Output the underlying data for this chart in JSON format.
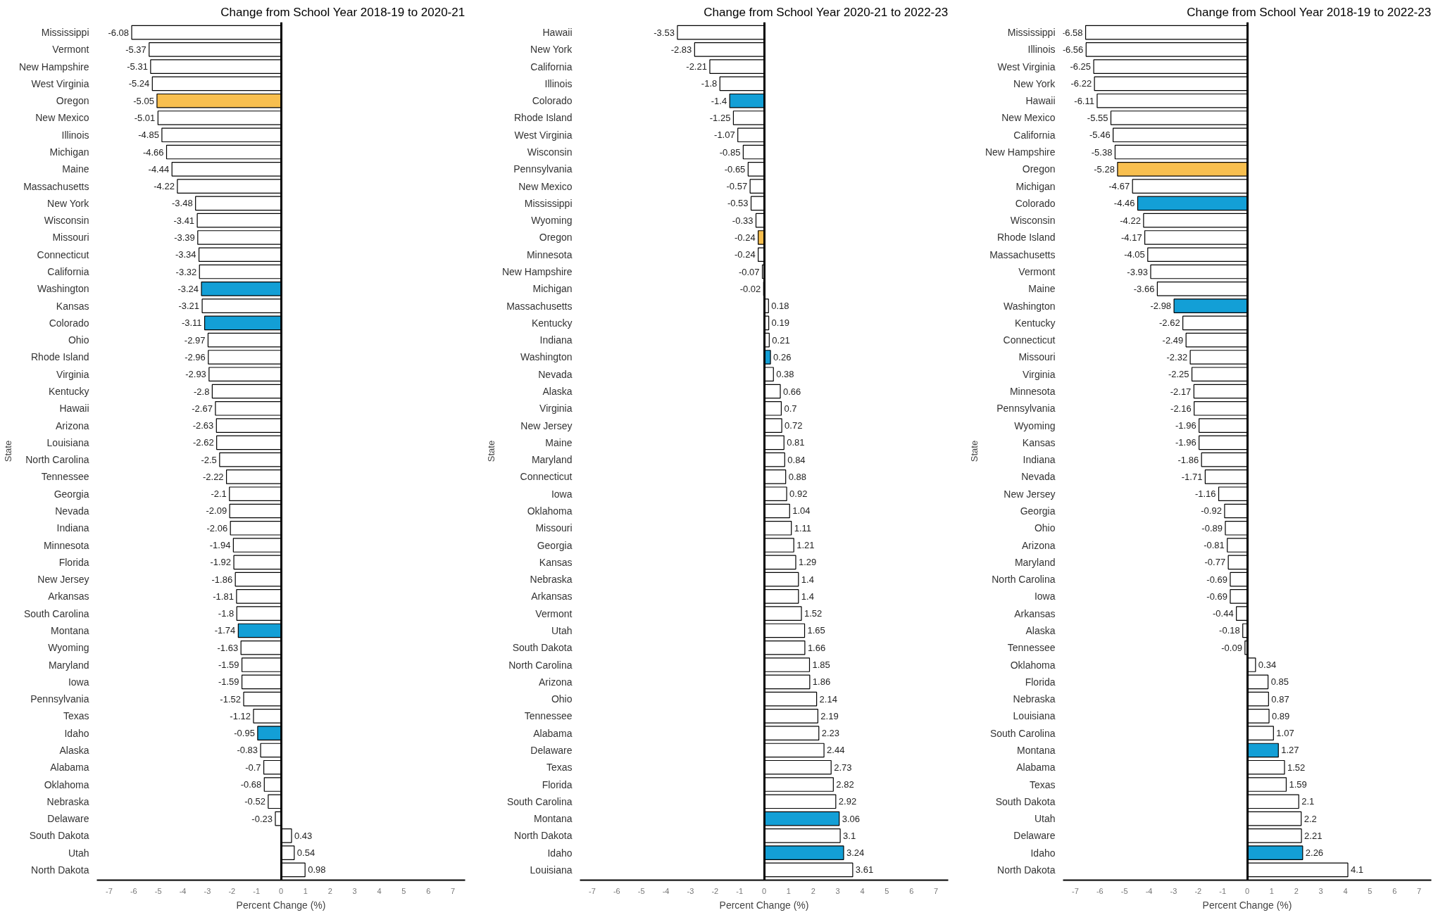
{
  "chart_data": [
    {
      "type": "bar",
      "orientation": "horizontal",
      "title": "Change from School Year 2018-19 to 2020-21",
      "xlabel": "Percent Change (%)",
      "ylabel": "State",
      "xlim": [
        -7.5,
        7.5
      ],
      "xticks": [
        -7,
        -6,
        -5,
        -4,
        -3,
        -2,
        -1,
        0,
        1,
        2,
        3,
        4,
        5,
        6,
        7
      ],
      "data_labels": true,
      "categories": [
        "Mississippi",
        "Vermont",
        "New Hampshire",
        "West Virginia",
        "Oregon",
        "New Mexico",
        "Illinois",
        "Michigan",
        "Maine",
        "Massachusetts",
        "New York",
        "Wisconsin",
        "Missouri",
        "Connecticut",
        "California",
        "Washington",
        "Kansas",
        "Colorado",
        "Ohio",
        "Rhode Island",
        "Virginia",
        "Kentucky",
        "Hawaii",
        "Arizona",
        "Louisiana",
        "North Carolina",
        "Tennessee",
        "Georgia",
        "Nevada",
        "Indiana",
        "Minnesota",
        "Florida",
        "New Jersey",
        "Arkansas",
        "South Carolina",
        "Montana",
        "Wyoming",
        "Maryland",
        "Iowa",
        "Pennsylvania",
        "Texas",
        "Idaho",
        "Alaska",
        "Alabama",
        "Oklahoma",
        "Nebraska",
        "Delaware",
        "South Dakota",
        "Utah",
        "North Dakota"
      ],
      "values": [
        -6.08,
        -5.37,
        -5.31,
        -5.24,
        -5.05,
        -5.01,
        -4.85,
        -4.66,
        -4.44,
        -4.22,
        -3.48,
        -3.41,
        -3.39,
        -3.34,
        -3.32,
        -3.24,
        -3.21,
        -3.11,
        -2.97,
        -2.96,
        -2.93,
        -2.8,
        -2.67,
        -2.63,
        -2.62,
        -2.5,
        -2.22,
        -2.1,
        -2.09,
        -2.06,
        -1.94,
        -1.92,
        -1.86,
        -1.81,
        -1.8,
        -1.74,
        -1.63,
        -1.59,
        -1.59,
        -1.52,
        -1.12,
        -0.95,
        -0.83,
        -0.7,
        -0.68,
        -0.52,
        -0.23,
        0.43,
        0.54,
        0.98
      ],
      "colors": [
        "#ffffff",
        "#ffffff",
        "#ffffff",
        "#ffffff",
        "#f8bf4f",
        "#ffffff",
        "#ffffff",
        "#ffffff",
        "#ffffff",
        "#ffffff",
        "#ffffff",
        "#ffffff",
        "#ffffff",
        "#ffffff",
        "#ffffff",
        "#139fd6",
        "#ffffff",
        "#139fd6",
        "#ffffff",
        "#ffffff",
        "#ffffff",
        "#ffffff",
        "#ffffff",
        "#ffffff",
        "#ffffff",
        "#ffffff",
        "#ffffff",
        "#ffffff",
        "#ffffff",
        "#ffffff",
        "#ffffff",
        "#ffffff",
        "#ffffff",
        "#ffffff",
        "#ffffff",
        "#139fd6",
        "#ffffff",
        "#ffffff",
        "#ffffff",
        "#ffffff",
        "#ffffff",
        "#139fd6",
        "#ffffff",
        "#ffffff",
        "#ffffff",
        "#ffffff",
        "#ffffff",
        "#ffffff",
        "#ffffff",
        "#ffffff"
      ]
    },
    {
      "type": "bar",
      "orientation": "horizontal",
      "title": "Change from School Year 2020-21 to 2022-23",
      "xlabel": "Percent Change (%)",
      "ylabel": "State",
      "xlim": [
        -7.5,
        7.5
      ],
      "xticks": [
        -7,
        -6,
        -5,
        -4,
        -3,
        -2,
        -1,
        0,
        1,
        2,
        3,
        4,
        5,
        6,
        7
      ],
      "data_labels": true,
      "categories": [
        "Hawaii",
        "New York",
        "California",
        "Illinois",
        "Colorado",
        "Rhode Island",
        "West Virginia",
        "Wisconsin",
        "Pennsylvania",
        "New Mexico",
        "Mississippi",
        "Wyoming",
        "Oregon",
        "Minnesota",
        "New Hampshire",
        "Michigan",
        "Massachusetts",
        "Kentucky",
        "Indiana",
        "Washington",
        "Nevada",
        "Alaska",
        "Virginia",
        "New Jersey",
        "Maine",
        "Maryland",
        "Connecticut",
        "Iowa",
        "Oklahoma",
        "Missouri",
        "Georgia",
        "Kansas",
        "Nebraska",
        "Arkansas",
        "Vermont",
        "Utah",
        "South Dakota",
        "North Carolina",
        "Arizona",
        "Ohio",
        "Tennessee",
        "Alabama",
        "Delaware",
        "Texas",
        "Florida",
        "South Carolina",
        "Montana",
        "North Dakota",
        "Idaho",
        "Louisiana"
      ],
      "values": [
        -3.53,
        -2.83,
        -2.21,
        -1.8,
        -1.4,
        -1.25,
        -1.07,
        -0.85,
        -0.65,
        -0.57,
        -0.53,
        -0.33,
        -0.24,
        -0.24,
        -0.07,
        -0.02,
        0.18,
        0.19,
        0.21,
        0.26,
        0.38,
        0.66,
        0.7,
        0.72,
        0.81,
        0.84,
        0.88,
        0.92,
        1.04,
        1.11,
        1.21,
        1.29,
        1.4,
        1.4,
        1.52,
        1.65,
        1.66,
        1.85,
        1.86,
        2.14,
        2.19,
        2.23,
        2.44,
        2.73,
        2.82,
        2.92,
        3.06,
        3.1,
        3.24,
        3.61
      ],
      "colors": [
        "#ffffff",
        "#ffffff",
        "#ffffff",
        "#ffffff",
        "#139fd6",
        "#ffffff",
        "#ffffff",
        "#ffffff",
        "#ffffff",
        "#ffffff",
        "#ffffff",
        "#ffffff",
        "#f8bf4f",
        "#ffffff",
        "#ffffff",
        "#ffffff",
        "#ffffff",
        "#ffffff",
        "#ffffff",
        "#139fd6",
        "#ffffff",
        "#ffffff",
        "#ffffff",
        "#ffffff",
        "#ffffff",
        "#ffffff",
        "#ffffff",
        "#ffffff",
        "#ffffff",
        "#ffffff",
        "#ffffff",
        "#ffffff",
        "#ffffff",
        "#ffffff",
        "#ffffff",
        "#ffffff",
        "#ffffff",
        "#ffffff",
        "#ffffff",
        "#ffffff",
        "#ffffff",
        "#ffffff",
        "#ffffff",
        "#ffffff",
        "#ffffff",
        "#ffffff",
        "#139fd6",
        "#ffffff",
        "#139fd6",
        "#ffffff"
      ]
    },
    {
      "type": "bar",
      "orientation": "horizontal",
      "title": "Change from School Year 2018-19 to 2022-23",
      "xlabel": "Percent Change (%)",
      "ylabel": "State",
      "xlim": [
        -7.5,
        7.5
      ],
      "xticks": [
        -7,
        -6,
        -5,
        -4,
        -3,
        -2,
        -1,
        0,
        1,
        2,
        3,
        4,
        5,
        6,
        7
      ],
      "data_labels": true,
      "categories": [
        "Mississippi",
        "Illinois",
        "West Virginia",
        "New York",
        "Hawaii",
        "New Mexico",
        "California",
        "New Hampshire",
        "Oregon",
        "Michigan",
        "Colorado",
        "Wisconsin",
        "Rhode Island",
        "Massachusetts",
        "Vermont",
        "Maine",
        "Washington",
        "Kentucky",
        "Connecticut",
        "Missouri",
        "Virginia",
        "Minnesota",
        "Pennsylvania",
        "Wyoming",
        "Kansas",
        "Indiana",
        "Nevada",
        "New Jersey",
        "Georgia",
        "Ohio",
        "Arizona",
        "Maryland",
        "North Carolina",
        "Iowa",
        "Arkansas",
        "Alaska",
        "Tennessee",
        "Oklahoma",
        "Florida",
        "Nebraska",
        "Louisiana",
        "South Carolina",
        "Montana",
        "Alabama",
        "Texas",
        "South Dakota",
        "Utah",
        "Delaware",
        "Idaho",
        "North Dakota"
      ],
      "values": [
        -6.58,
        -6.56,
        -6.25,
        -6.22,
        -6.11,
        -5.55,
        -5.46,
        -5.38,
        -5.28,
        -4.67,
        -4.46,
        -4.22,
        -4.17,
        -4.05,
        -3.93,
        -3.66,
        -2.98,
        -2.62,
        -2.49,
        -2.32,
        -2.25,
        -2.17,
        -2.16,
        -1.96,
        -1.96,
        -1.86,
        -1.71,
        -1.16,
        -0.92,
        -0.89,
        -0.81,
        -0.77,
        -0.69,
        -0.69,
        -0.44,
        -0.18,
        -0.09,
        0.34,
        0.85,
        0.87,
        0.89,
        1.07,
        1.27,
        1.52,
        1.59,
        2.1,
        2.2,
        2.21,
        2.26,
        4.1
      ],
      "colors": [
        "#ffffff",
        "#ffffff",
        "#ffffff",
        "#ffffff",
        "#ffffff",
        "#ffffff",
        "#ffffff",
        "#ffffff",
        "#f8bf4f",
        "#ffffff",
        "#139fd6",
        "#ffffff",
        "#ffffff",
        "#ffffff",
        "#ffffff",
        "#ffffff",
        "#139fd6",
        "#ffffff",
        "#ffffff",
        "#ffffff",
        "#ffffff",
        "#ffffff",
        "#ffffff",
        "#ffffff",
        "#ffffff",
        "#ffffff",
        "#ffffff",
        "#ffffff",
        "#ffffff",
        "#ffffff",
        "#ffffff",
        "#ffffff",
        "#ffffff",
        "#ffffff",
        "#ffffff",
        "#ffffff",
        "#ffffff",
        "#ffffff",
        "#ffffff",
        "#ffffff",
        "#ffffff",
        "#ffffff",
        "#139fd6",
        "#ffffff",
        "#ffffff",
        "#ffffff",
        "#ffffff",
        "#ffffff",
        "#139fd6",
        "#ffffff"
      ]
    }
  ]
}
